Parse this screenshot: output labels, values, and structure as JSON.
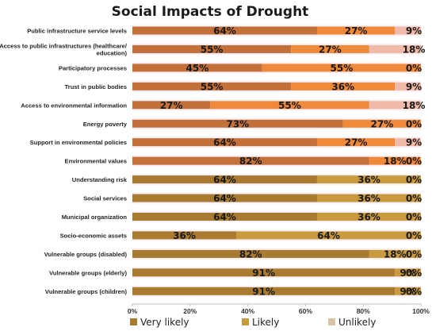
{
  "chart_data": {
    "type": "bar",
    "orientation": "horizontal",
    "stacked": true,
    "title": "Social Impacts of Drought",
    "xlim": [
      0,
      100
    ],
    "x_ticks": [
      "0%",
      "20%",
      "40%",
      "60%",
      "80%",
      "100%"
    ],
    "grid": false,
    "legend_position": "bottom",
    "categories": [
      [
        "Public infrastructure service levels"
      ],
      [
        "Access to public infrastructures (healthcare/",
        "education)"
      ],
      [
        "Participatory processes"
      ],
      [
        "Trust in public bodies"
      ],
      [
        "Access to environmental information"
      ],
      [
        "Energy poverty"
      ],
      [
        "Support in environmental policies"
      ],
      [
        "Environmental values"
      ],
      [
        "Understanding risk"
      ],
      [
        "Social services"
      ],
      [
        "Municipal organization"
      ],
      [
        "Socio-economic assets"
      ],
      [
        "Vulnerable groups (disabled)"
      ],
      [
        "Vulnerable groups (elderly)"
      ],
      [
        "Vulnerable groups (children)"
      ]
    ],
    "series": [
      {
        "name": "Very likely",
        "values": [
          64,
          55,
          45,
          55,
          27,
          73,
          64,
          82,
          64,
          64,
          64,
          36,
          82,
          91,
          91
        ]
      },
      {
        "name": "Likely",
        "values": [
          27,
          27,
          55,
          36,
          55,
          27,
          27,
          18,
          36,
          36,
          36,
          64,
          18,
          9,
          9
        ]
      },
      {
        "name": "Unlikely",
        "values": [
          9,
          18,
          0,
          9,
          18,
          0,
          9,
          0,
          0,
          0,
          0,
          0,
          0,
          0,
          0
        ]
      }
    ],
    "data_labels": [
      [
        "64%",
        "27%",
        "9%"
      ],
      [
        "55%",
        "27%",
        "18%"
      ],
      [
        "45%",
        "55%",
        "0%"
      ],
      [
        "55%",
        "36%",
        "9%"
      ],
      [
        "27%",
        "55%",
        "18%"
      ],
      [
        "73%",
        "27%",
        "0%"
      ],
      [
        "64%",
        "27%",
        "9%"
      ],
      [
        "82%",
        "18%",
        "0%"
      ],
      [
        "64%",
        "36%",
        "0%"
      ],
      [
        "64%",
        "36%",
        "0%"
      ],
      [
        "64%",
        "36%",
        "0%"
      ],
      [
        "36%",
        "64%",
        "0%"
      ],
      [
        "82%",
        "18%",
        "0%"
      ],
      [
        "91%",
        "9%",
        "0%"
      ],
      [
        "91%",
        "9%",
        "0%"
      ]
    ],
    "colors": {
      "upper_group": [
        "#c3703a",
        "#f0893a",
        "#f1b9a8"
      ],
      "lower_group": [
        "#a97b30",
        "#c99a3e",
        "#d9c3a4"
      ],
      "lower_group_start_index": 8,
      "legend": [
        "#a97b30",
        "#c99a3e",
        "#d9c3a4"
      ]
    }
  }
}
